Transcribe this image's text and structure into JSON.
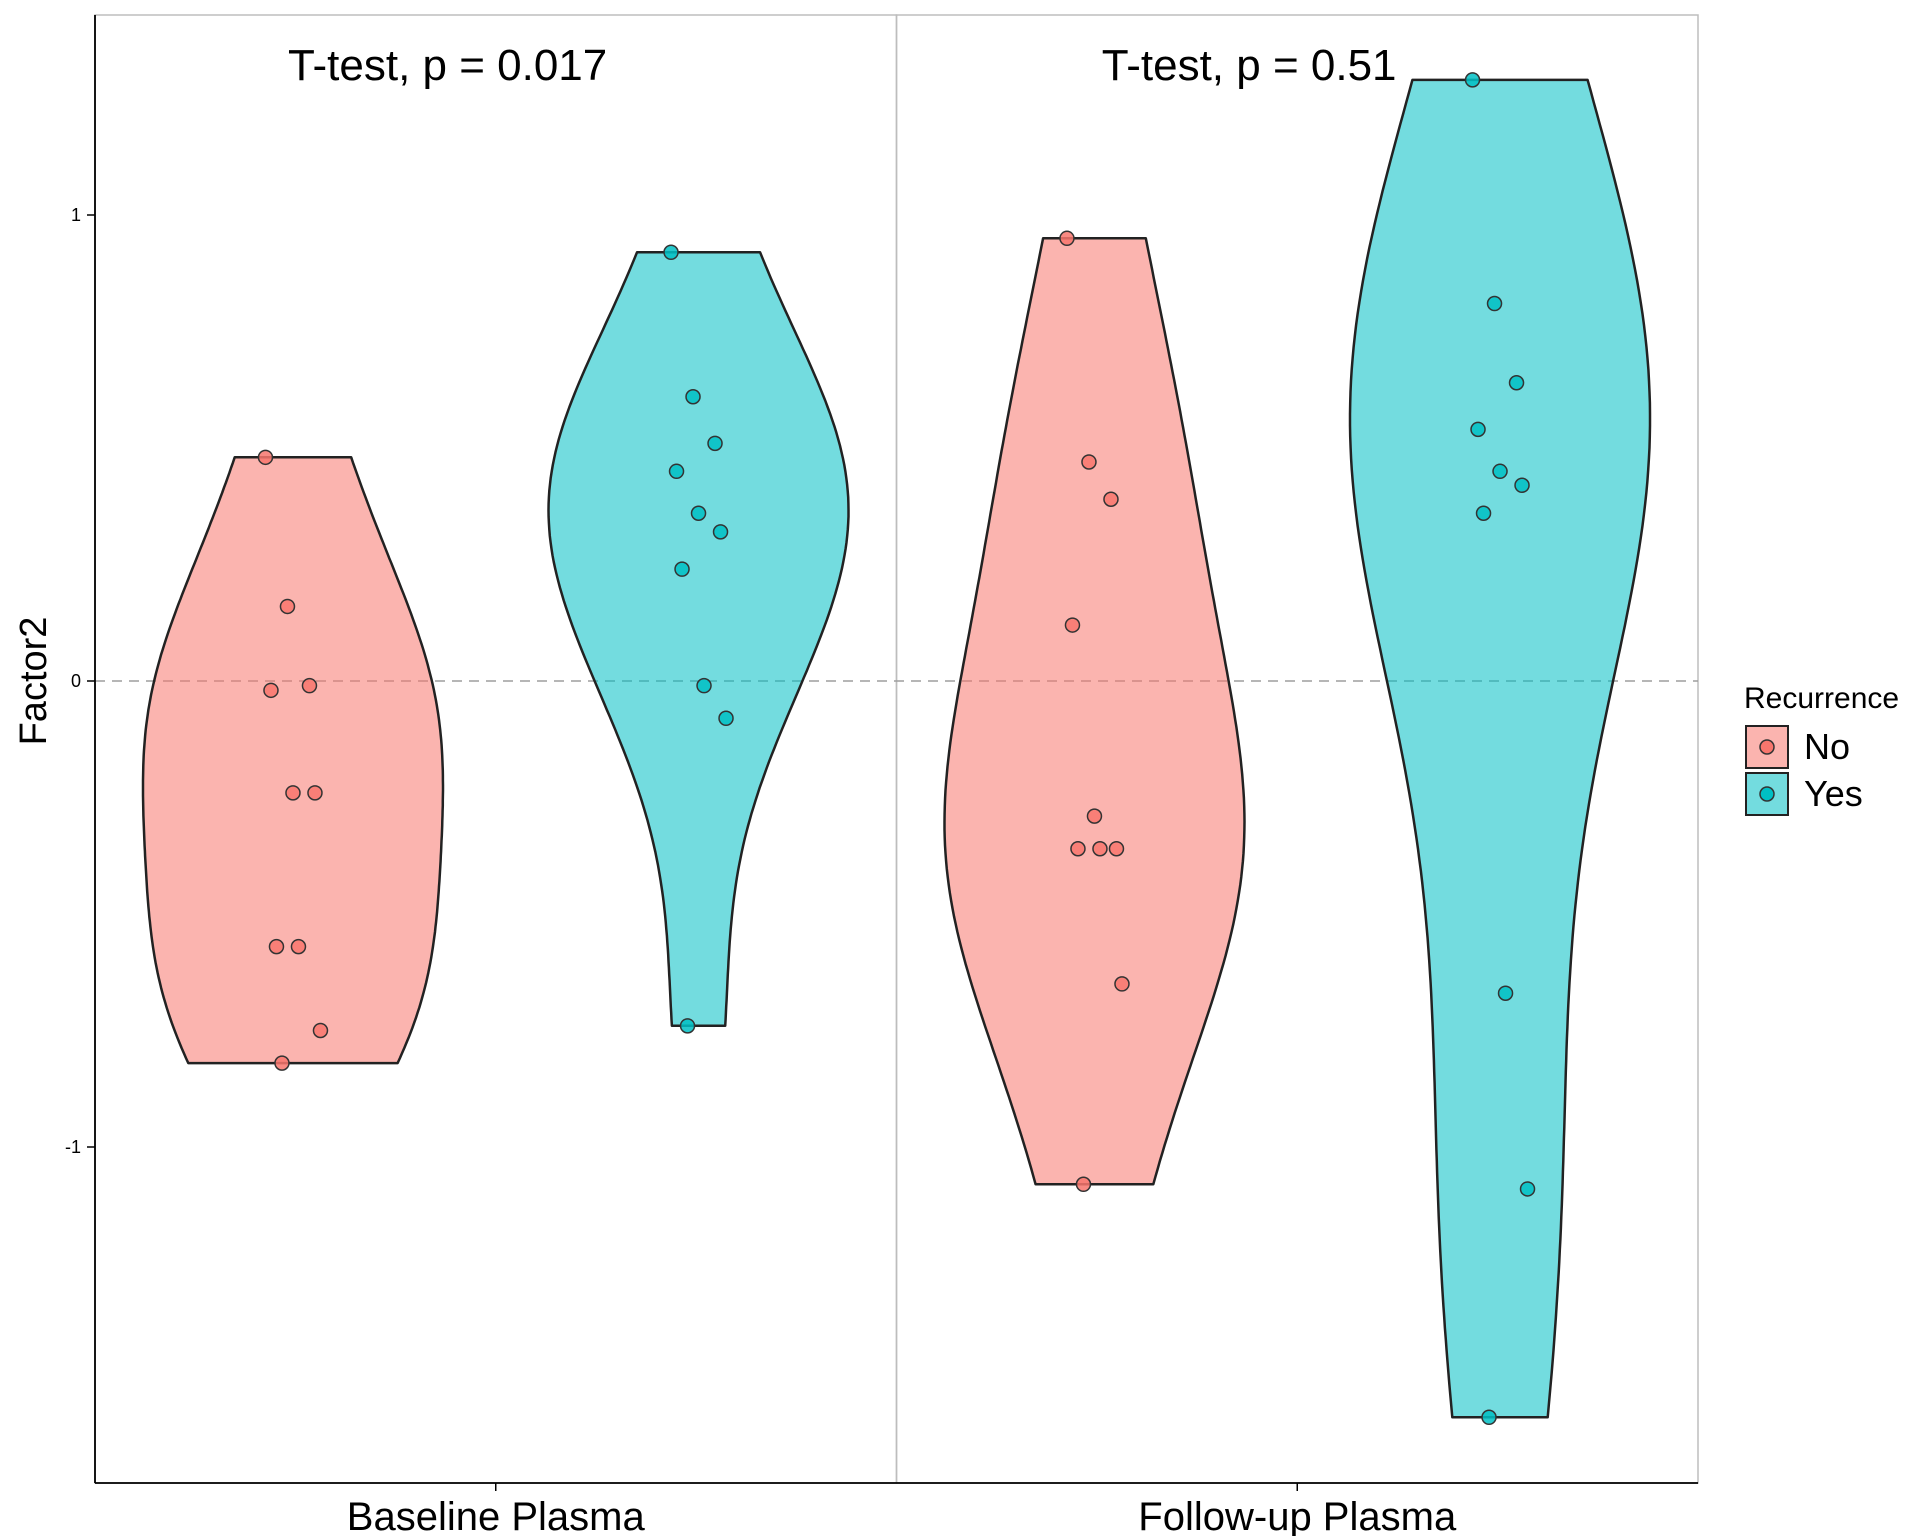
{
  "chart_data": {
    "type": "violin",
    "ylabel": "Factor2",
    "xlabel": "",
    "categories": [
      "Baseline Plasma",
      "Follow-up Plasma"
    ],
    "yticks": [
      -1,
      0,
      1
    ],
    "ylim": [
      -1.72,
      1.43
    ],
    "reference_line": 0,
    "legend": {
      "title": "Recurrence",
      "position": "right",
      "entries": [
        {
          "label": "No",
          "fill": "#f8766d"
        },
        {
          "label": "Yes",
          "fill": "#00bfc4"
        }
      ]
    },
    "panels": [
      {
        "category": "Baseline Plasma",
        "annotation": "T-test, p = 0.017",
        "groups": [
          {
            "name": "No",
            "points": [
              0.48,
              0.16,
              -0.01,
              -0.02,
              -0.24,
              -0.24,
              -0.57,
              -0.57,
              -0.75,
              -0.82
            ]
          },
          {
            "name": "Yes",
            "points": [
              0.92,
              0.61,
              0.51,
              0.45,
              0.36,
              0.32,
              0.24,
              -0.01,
              -0.08,
              -0.74
            ]
          }
        ]
      },
      {
        "category": "Follow-up Plasma",
        "annotation": "T-test, p = 0.51",
        "groups": [
          {
            "name": "No",
            "points": [
              0.95,
              0.47,
              0.39,
              0.12,
              -0.29,
              -0.36,
              -0.36,
              -0.36,
              -0.65,
              -1.08
            ]
          },
          {
            "name": "Yes",
            "points": [
              1.29,
              0.81,
              0.64,
              0.54,
              0.45,
              0.42,
              0.36,
              -0.67,
              -1.09,
              -1.58
            ]
          }
        ]
      }
    ]
  }
}
